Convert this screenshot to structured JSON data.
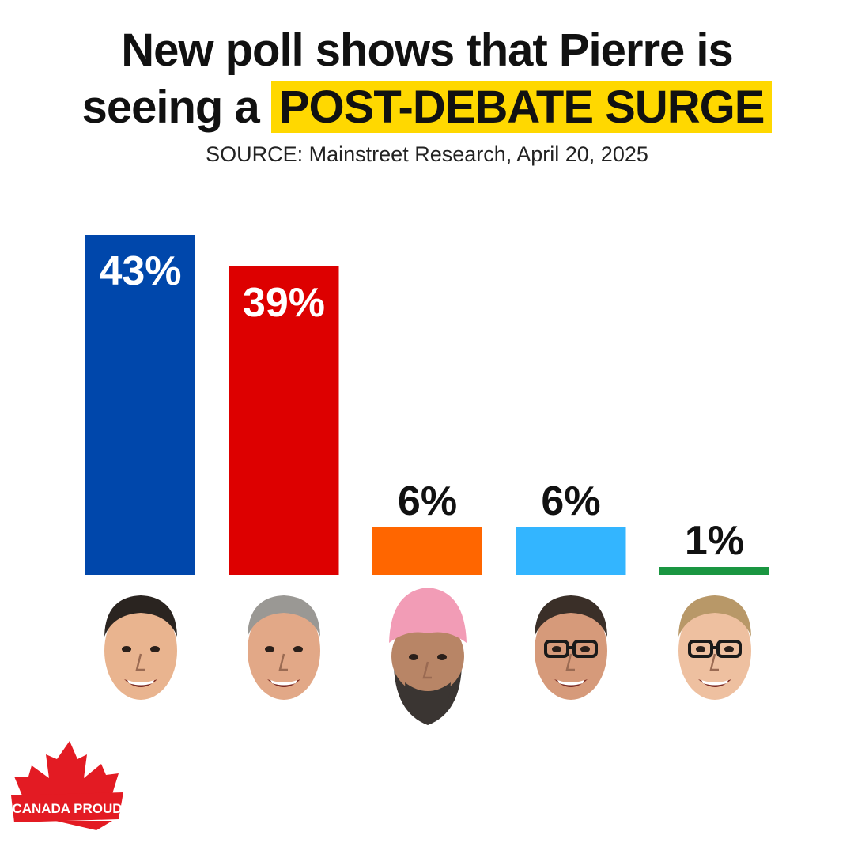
{
  "title": {
    "line1": "New poll shows that Pierre is",
    "line2_prefix": "seeing a",
    "line2_highlight": "POST-DEBATE SURGE"
  },
  "source": "SOURCE: Mainstreet Research, April 20, 2025",
  "chart_data": {
    "type": "bar",
    "categories": [
      "",
      "",
      "",
      "",
      ""
    ],
    "values": [
      43,
      39,
      6,
      6,
      1
    ],
    "value_labels": [
      "43%",
      "39%",
      "6%",
      "6%",
      "1%"
    ],
    "colors": [
      "#0047ab",
      "#dd0000",
      "#ff6600",
      "#33b5ff",
      "#1a9641"
    ],
    "label_position": [
      "inside",
      "inside",
      "above",
      "above",
      "above"
    ],
    "ylim": [
      0,
      43
    ],
    "title": "",
    "xlabel": "",
    "ylabel": "",
    "grid": false,
    "legend": "none"
  },
  "faces": [
    {
      "icon": "man-smiling-face",
      "skin": "#e9b48f",
      "hair": "#2a2420"
    },
    {
      "icon": "man-grey-hair-face",
      "skin": "#e2a887",
      "hair": "#9a9894"
    },
    {
      "icon": "man-turban-beard-face",
      "skin": "#b88566",
      "hair": "#3a3532",
      "turban": "#f29cb6"
    },
    {
      "icon": "man-glasses-face",
      "skin": "#d69a7a",
      "hair": "#3a2f28"
    },
    {
      "icon": "woman-glasses-face",
      "skin": "#eec0a0",
      "hair": "#b89868"
    }
  ],
  "logo": {
    "text": "CANADA PROUD",
    "icon": "maple-leaf-icon",
    "color": "#e31b23"
  }
}
